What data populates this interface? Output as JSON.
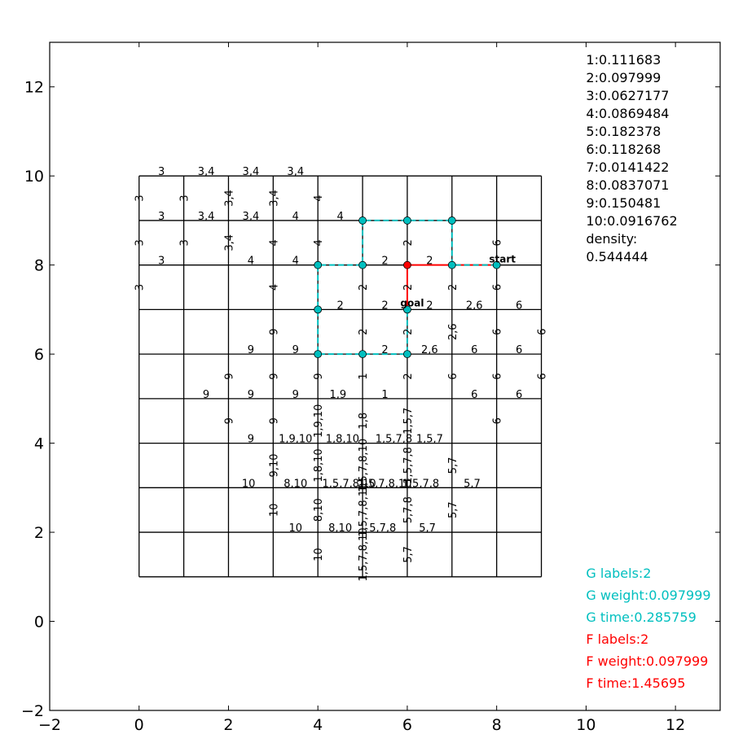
{
  "chart_data": {
    "type": "grid-graph",
    "xlim": [
      -2,
      13
    ],
    "ylim": [
      -2,
      13
    ],
    "xticks": [
      -2,
      0,
      2,
      4,
      6,
      8,
      10,
      12
    ],
    "yticks": [
      -2,
      0,
      2,
      4,
      6,
      8,
      10,
      12
    ],
    "grid": {
      "x_range": [
        0,
        9
      ],
      "y_range": [
        1,
        10
      ],
      "step": 1
    },
    "colors": {
      "line": "#000000",
      "g_path": "#00bfbf",
      "f_path": "#ff0000",
      "node": "#00bfbf",
      "start_node": "#ff0000"
    },
    "edge_labels_horizontal": [
      {
        "x": 0.5,
        "y": 10,
        "t": "3"
      },
      {
        "x": 1.5,
        "y": 10,
        "t": "3,4"
      },
      {
        "x": 2.5,
        "y": 10,
        "t": "3,4"
      },
      {
        "x": 3.5,
        "y": 10,
        "t": "3,4"
      },
      {
        "x": 0.5,
        "y": 9,
        "t": "3"
      },
      {
        "x": 1.5,
        "y": 9,
        "t": "3,4"
      },
      {
        "x": 2.5,
        "y": 9,
        "t": "3,4"
      },
      {
        "x": 3.5,
        "y": 9,
        "t": "4"
      },
      {
        "x": 4.5,
        "y": 9,
        "t": "4"
      },
      {
        "x": 0.5,
        "y": 8,
        "t": "3"
      },
      {
        "x": 2.5,
        "y": 8,
        "t": "4"
      },
      {
        "x": 3.5,
        "y": 8,
        "t": "4"
      },
      {
        "x": 5.5,
        "y": 8,
        "t": "2"
      },
      {
        "x": 6.5,
        "y": 8,
        "t": "2"
      },
      {
        "x": 4.5,
        "y": 7,
        "t": "2"
      },
      {
        "x": 5.5,
        "y": 7,
        "t": "2"
      },
      {
        "x": 6.5,
        "y": 7,
        "t": "2"
      },
      {
        "x": 7.5,
        "y": 7,
        "t": "2,6"
      },
      {
        "x": 8.5,
        "y": 7,
        "t": "6"
      },
      {
        "x": 2.5,
        "y": 6,
        "t": "9"
      },
      {
        "x": 3.5,
        "y": 6,
        "t": "9"
      },
      {
        "x": 5.5,
        "y": 6,
        "t": "2"
      },
      {
        "x": 6.5,
        "y": 6,
        "t": "2,6"
      },
      {
        "x": 7.5,
        "y": 6,
        "t": "6"
      },
      {
        "x": 8.5,
        "y": 6,
        "t": "6"
      },
      {
        "x": 1.5,
        "y": 5,
        "t": "9"
      },
      {
        "x": 2.5,
        "y": 5,
        "t": "9"
      },
      {
        "x": 3.5,
        "y": 5,
        "t": "9"
      },
      {
        "x": 4.45,
        "y": 5,
        "t": "1,9"
      },
      {
        "x": 5.5,
        "y": 5,
        "t": "1"
      },
      {
        "x": 7.5,
        "y": 5,
        "t": "6"
      },
      {
        "x": 8.5,
        "y": 5,
        "t": "6"
      },
      {
        "x": 2.5,
        "y": 4,
        "t": "9"
      },
      {
        "x": 3.5,
        "y": 4,
        "t": "1,9,10"
      },
      {
        "x": 4.55,
        "y": 4,
        "t": "1,8,10"
      },
      {
        "x": 5.7,
        "y": 4,
        "t": "1,5,7,8"
      },
      {
        "x": 6.5,
        "y": 4,
        "t": "1,5,7"
      },
      {
        "x": 2.45,
        "y": 3,
        "t": "10"
      },
      {
        "x": 3.5,
        "y": 3,
        "t": "8,10"
      },
      {
        "x": 4.7,
        "y": 3,
        "t": "1,5,7,8,10"
      },
      {
        "x": 5.5,
        "y": 3,
        "t": "1,5,7,8,10"
      },
      {
        "x": 6.3,
        "y": 3,
        "t": "1,5,7,8"
      },
      {
        "x": 7.45,
        "y": 3,
        "t": "5,7"
      },
      {
        "x": 3.5,
        "y": 2,
        "t": "10"
      },
      {
        "x": 4.5,
        "y": 2,
        "t": "8,10"
      },
      {
        "x": 5.45,
        "y": 2,
        "t": "5,7,8"
      },
      {
        "x": 6.45,
        "y": 2,
        "t": "5,7"
      }
    ],
    "edge_labels_vertical": [
      {
        "x": 0,
        "y": 9.5,
        "t": "3"
      },
      {
        "x": 1,
        "y": 9.5,
        "t": "3"
      },
      {
        "x": 2,
        "y": 9.5,
        "t": "3,4"
      },
      {
        "x": 3,
        "y": 9.5,
        "t": "3,4"
      },
      {
        "x": 4,
        "y": 9.5,
        "t": "4"
      },
      {
        "x": 0,
        "y": 8.5,
        "t": "3"
      },
      {
        "x": 1,
        "y": 8.5,
        "t": "3"
      },
      {
        "x": 2,
        "y": 8.5,
        "t": "3,4"
      },
      {
        "x": 3,
        "y": 8.5,
        "t": "4"
      },
      {
        "x": 4,
        "y": 8.5,
        "t": "4"
      },
      {
        "x": 6,
        "y": 8.5,
        "t": "2"
      },
      {
        "x": 8,
        "y": 8.5,
        "t": "6"
      },
      {
        "x": 0,
        "y": 7.5,
        "t": "3"
      },
      {
        "x": 3,
        "y": 7.5,
        "t": "4"
      },
      {
        "x": 5,
        "y": 7.5,
        "t": "2"
      },
      {
        "x": 6,
        "y": 7.5,
        "t": "2"
      },
      {
        "x": 7,
        "y": 7.5,
        "t": "2"
      },
      {
        "x": 8,
        "y": 7.5,
        "t": "6"
      },
      {
        "x": 3,
        "y": 6.5,
        "t": "9"
      },
      {
        "x": 5,
        "y": 6.5,
        "t": "2"
      },
      {
        "x": 6,
        "y": 6.5,
        "t": "2"
      },
      {
        "x": 7,
        "y": 6.5,
        "t": "2,6"
      },
      {
        "x": 8,
        "y": 6.5,
        "t": "6"
      },
      {
        "x": 9,
        "y": 6.5,
        "t": "6"
      },
      {
        "x": 2,
        "y": 5.5,
        "t": "9"
      },
      {
        "x": 3,
        "y": 5.5,
        "t": "9"
      },
      {
        "x": 4,
        "y": 5.5,
        "t": "9"
      },
      {
        "x": 5,
        "y": 5.5,
        "t": "1"
      },
      {
        "x": 6,
        "y": 5.5,
        "t": "2"
      },
      {
        "x": 7,
        "y": 5.5,
        "t": "6"
      },
      {
        "x": 8,
        "y": 5.5,
        "t": "6"
      },
      {
        "x": 9,
        "y": 5.5,
        "t": "6"
      },
      {
        "x": 2,
        "y": 4.5,
        "t": "9"
      },
      {
        "x": 3,
        "y": 4.5,
        "t": "9"
      },
      {
        "x": 4,
        "y": 4.5,
        "t": "1,9,10"
      },
      {
        "x": 5,
        "y": 4.5,
        "t": "1,8"
      },
      {
        "x": 6,
        "y": 4.5,
        "t": "1,5,7"
      },
      {
        "x": 8,
        "y": 4.5,
        "t": "6"
      },
      {
        "x": 3,
        "y": 3.5,
        "t": "9,10"
      },
      {
        "x": 4,
        "y": 3.5,
        "t": "1,8,10"
      },
      {
        "x": 5,
        "y": 3.5,
        "t": "1,5,7,8,10"
      },
      {
        "x": 6,
        "y": 3.5,
        "t": "1,5,7,8"
      },
      {
        "x": 7,
        "y": 3.5,
        "t": "5,7"
      },
      {
        "x": 3,
        "y": 2.5,
        "t": "10"
      },
      {
        "x": 4,
        "y": 2.5,
        "t": "8,10"
      },
      {
        "x": 5,
        "y": 2.5,
        "t": "1,5,7,8,10"
      },
      {
        "x": 6,
        "y": 2.5,
        "t": "5,7,8"
      },
      {
        "x": 7,
        "y": 2.5,
        "t": "5,7"
      },
      {
        "x": 4,
        "y": 1.5,
        "t": "10"
      },
      {
        "x": 5,
        "y": 1.5,
        "t": "1,5,7,8,10"
      },
      {
        "x": 6,
        "y": 1.5,
        "t": "5,7"
      }
    ],
    "g_path": [
      [
        8,
        8
      ],
      [
        7,
        8
      ],
      [
        7,
        9
      ],
      [
        6,
        9
      ],
      [
        5,
        9
      ],
      [
        5,
        8
      ],
      [
        4,
        8
      ],
      [
        4,
        7
      ],
      [
        4,
        6
      ],
      [
        5,
        6
      ],
      [
        6,
        6
      ],
      [
        6,
        7
      ]
    ],
    "f_path": [
      [
        8,
        8
      ],
      [
        7,
        8
      ],
      [
        6,
        8
      ],
      [
        6,
        7
      ]
    ],
    "nodes": [
      [
        8,
        8
      ],
      [
        7,
        8
      ],
      [
        7,
        9
      ],
      [
        6,
        9
      ],
      [
        5,
        9
      ],
      [
        5,
        8
      ],
      [
        4,
        8
      ],
      [
        4,
        7
      ],
      [
        4,
        6
      ],
      [
        5,
        6
      ],
      [
        6,
        6
      ],
      [
        6,
        7
      ]
    ],
    "red_node": [
      6,
      8
    ],
    "start": {
      "x": 8,
      "y": 8,
      "label": "start"
    },
    "goal": {
      "x": 6,
      "y": 7,
      "label": "goal"
    },
    "label_weights": [
      "1:0.111683",
      "2:0.097999",
      "3:0.0627177",
      "4:0.0869484",
      "5:0.182378",
      "6:0.118268",
      "7:0.0141422",
      "8:0.0837071",
      "9:0.150481",
      "10:0.0916762",
      "density:",
      "0.544444"
    ],
    "g_stats": [
      "G labels:2",
      "G weight:0.097999",
      "G time:0.285759"
    ],
    "f_stats": [
      "F labels:2",
      "F weight:0.097999",
      "F time:1.45695"
    ]
  }
}
